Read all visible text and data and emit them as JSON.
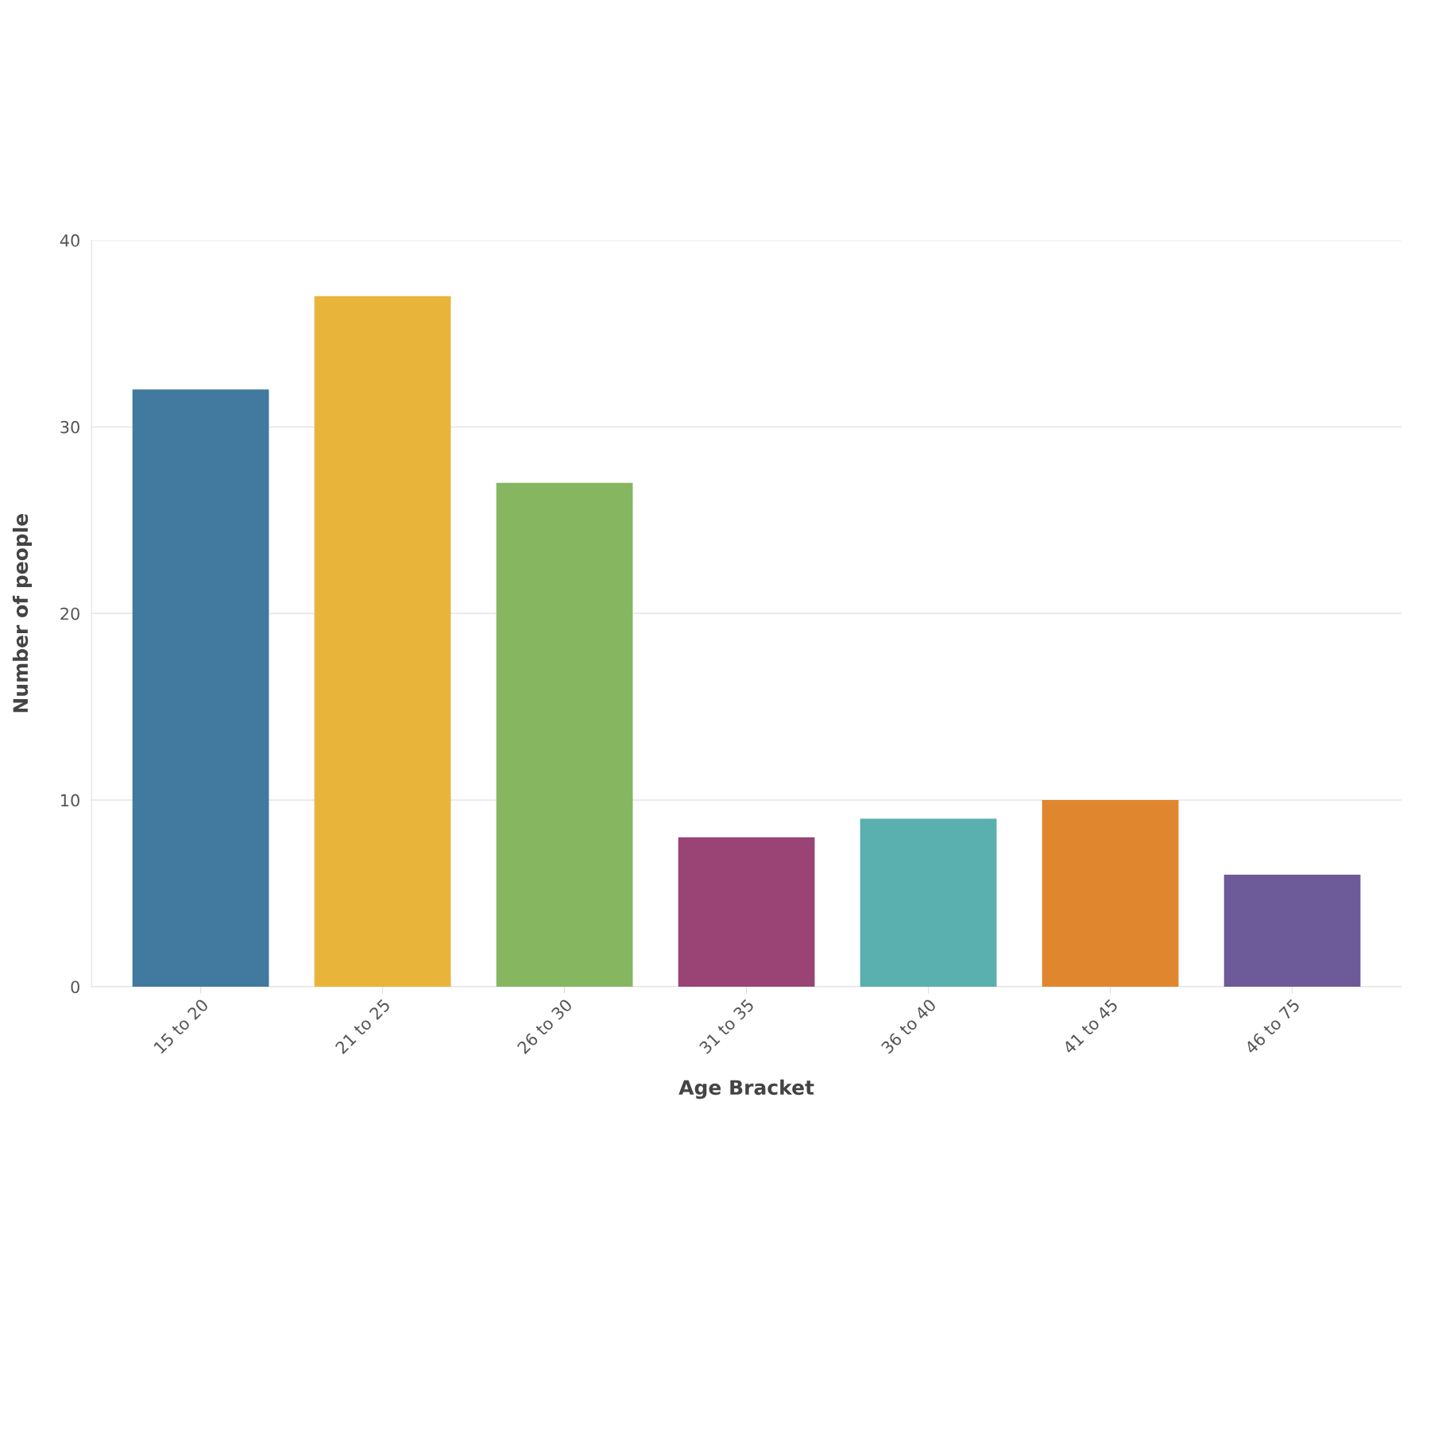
{
  "chart_data": {
    "type": "bar",
    "xlabel": "Age Bracket",
    "ylabel": "Number of people",
    "categories": [
      "15 to 20",
      "21 to 25",
      "26 to 30",
      "31 to 35",
      "36 to 40",
      "41 to 45",
      "46 to 75"
    ],
    "values": [
      32,
      37,
      27,
      8,
      9,
      10,
      6
    ],
    "colors": [
      "#41799f",
      "#e9b43a",
      "#87b661",
      "#9a4475",
      "#5aafaf",
      "#df862f",
      "#6d5a98"
    ],
    "ylim": [
      0,
      40
    ],
    "yticks": [
      0,
      10,
      20,
      30,
      40
    ],
    "grid": "y"
  }
}
